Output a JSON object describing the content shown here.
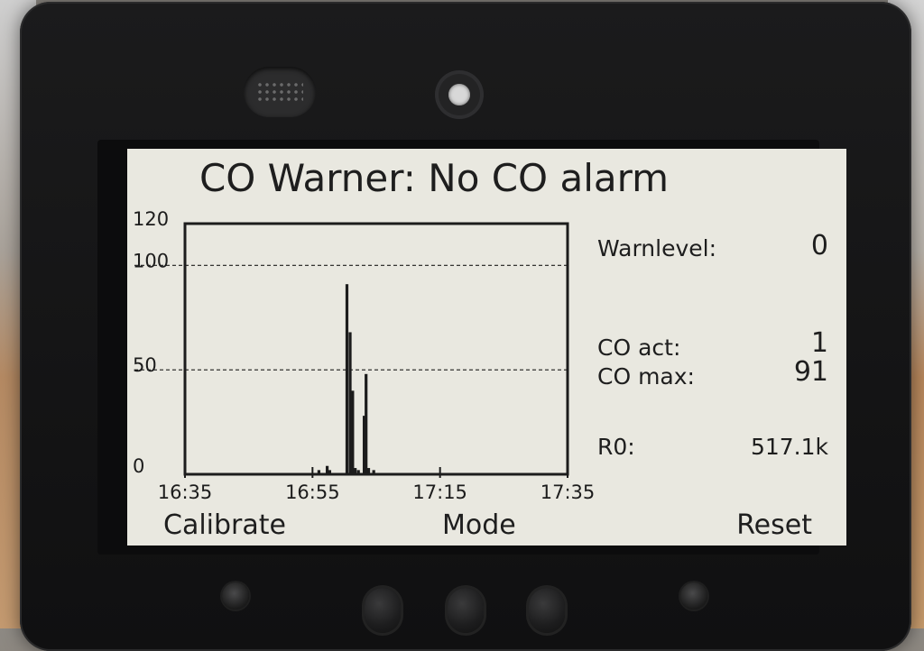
{
  "header": {
    "title": "CO Warner: No CO alarm"
  },
  "status": {
    "warnlevel_label": "Warnlevel:",
    "warnlevel_value": "0",
    "co_act_label": "CO act:",
    "co_act_value": "1",
    "co_max_label": "CO max:",
    "co_max_value": "91",
    "r0_label": "R0:",
    "r0_value": "517.1k"
  },
  "softkeys": {
    "left": "Calibrate",
    "center": "Mode",
    "right": "Reset"
  },
  "chart_data": {
    "type": "bar",
    "title": "",
    "xlabel": "",
    "ylabel": "",
    "ylim": [
      0,
      120
    ],
    "y_ticks": [
      "0",
      "50",
      "100",
      "120"
    ],
    "x_ticks": [
      "16:35",
      "16:55",
      "17:15",
      "17:35"
    ],
    "x_range_minutes": [
      0,
      60
    ],
    "gridlines": [
      50,
      100
    ],
    "bar_color": "#1c1c1c",
    "bars": [
      {
        "t": 21.0,
        "v": 2
      },
      {
        "t": 22.3,
        "v": 4
      },
      {
        "t": 22.7,
        "v": 2
      },
      {
        "t": 25.4,
        "v": 91
      },
      {
        "t": 25.9,
        "v": 68
      },
      {
        "t": 26.3,
        "v": 40
      },
      {
        "t": 26.7,
        "v": 3
      },
      {
        "t": 27.2,
        "v": 2
      },
      {
        "t": 28.1,
        "v": 28
      },
      {
        "t": 28.4,
        "v": 48
      },
      {
        "t": 28.8,
        "v": 3
      },
      {
        "t": 29.6,
        "v": 2
      }
    ]
  },
  "colors": {
    "screen_bg": "#e9e8e0",
    "ink": "#1c1c1c",
    "device_body": "#141415"
  }
}
